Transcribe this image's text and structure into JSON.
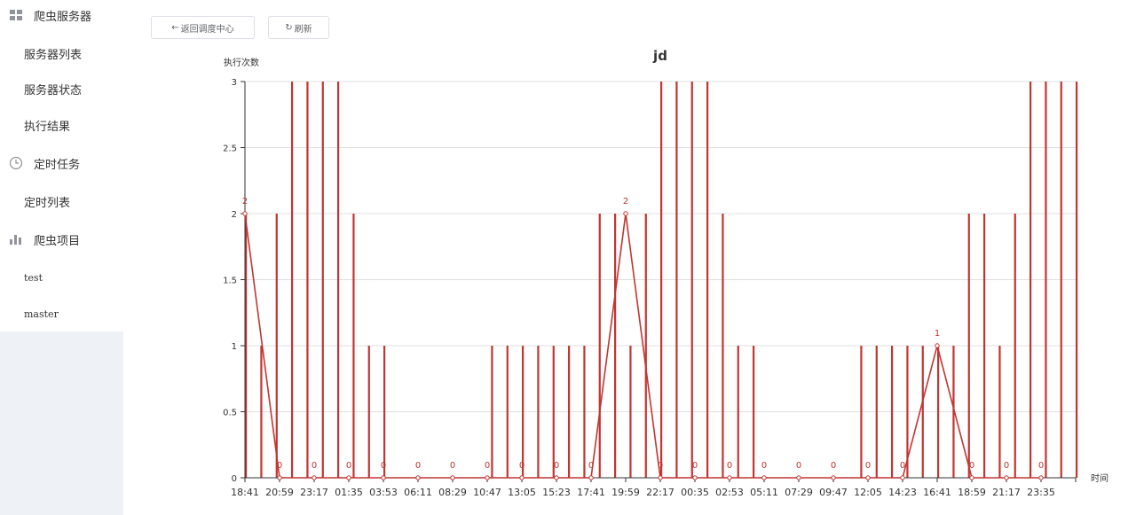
{
  "sidebar": {
    "groups": [
      {
        "label": "爬虫服务器",
        "icon": "grid-icon",
        "items": [
          {
            "label": "服务器列表"
          },
          {
            "label": "服务器状态"
          },
          {
            "label": "执行结果"
          }
        ]
      },
      {
        "label": "定时任务",
        "icon": "clock-icon",
        "items": [
          {
            "label": "定时列表"
          }
        ]
      },
      {
        "label": "爬虫项目",
        "icon": "bar-chart-icon",
        "items": [
          {
            "label": "test"
          },
          {
            "label": "master"
          }
        ]
      }
    ]
  },
  "toolbar": {
    "back_label": "返回调度中心",
    "refresh_label": "刷新"
  },
  "chart_data": {
    "type": "bar",
    "title": "jd",
    "ylabel": "执行次数",
    "xlabel": "时间",
    "ylim": [
      0,
      3
    ],
    "yticks": [
      "0",
      "0.5",
      "1",
      "1.5",
      "2",
      "2.5",
      "3"
    ],
    "xtick_labels": [
      "18:41",
      "20:59",
      "23:17",
      "01:35",
      "03:53",
      "06:11",
      "08:29",
      "10:47",
      "13:05",
      "15:23",
      "17:41",
      "19:59",
      "22:17",
      "00:35",
      "02:53",
      "05:11",
      "07:29",
      "09:47",
      "12:05",
      "14:23",
      "16:41",
      "18:59",
      "21:17",
      "23:35"
    ],
    "bars": [
      2,
      1,
      2,
      3,
      3,
      3,
      3,
      2,
      1,
      1,
      0,
      0,
      0,
      0,
      0,
      0,
      1,
      1,
      1,
      1,
      1,
      1,
      1,
      2,
      2,
      1,
      2,
      3,
      3,
      3,
      3,
      2,
      1,
      1,
      0,
      0,
      0,
      0,
      0,
      0,
      1,
      1,
      1,
      1,
      1,
      1,
      1,
      2,
      2,
      1,
      2,
      3,
      3,
      3,
      3
    ],
    "line": [
      2,
      0,
      0,
      0,
      0,
      0,
      0,
      0,
      0,
      0,
      0,
      2,
      0,
      0,
      0,
      0,
      0,
      0,
      0,
      0,
      1,
      0,
      0,
      0
    ],
    "line_labels": [
      "2",
      "0",
      "0",
      "0",
      "0",
      "0",
      "0",
      "0",
      "0",
      "0",
      "0",
      "2",
      "0",
      "0",
      "0",
      "0",
      "0",
      "0",
      "0",
      "0",
      "1",
      "0",
      "0",
      "0"
    ],
    "colors": {
      "bar": "#c23531",
      "line": "#c23531",
      "grid": "#e0e0e0"
    },
    "grid": true,
    "legend": "none"
  }
}
